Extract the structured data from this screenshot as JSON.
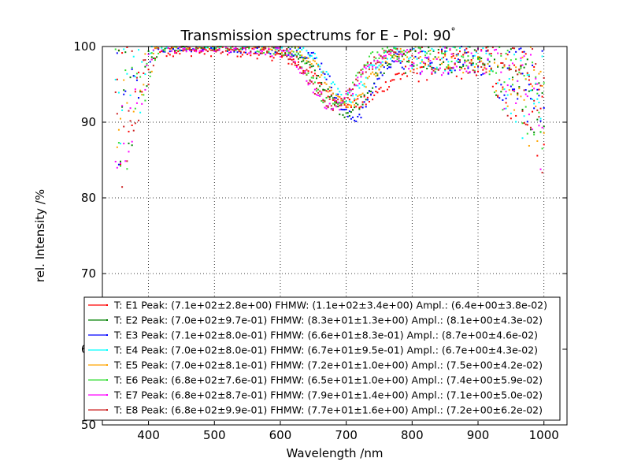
{
  "chart_data": {
    "type": "scatter",
    "title": "Transmission spectrums for E - Pol: 90",
    "title_degree": "°",
    "xlabel": "Wavelength  /nm",
    "ylabel": "rel. Intensity  /%",
    "xlim": [
      330,
      1035
    ],
    "ylim": [
      50,
      100
    ],
    "xticks": [
      400,
      500,
      600,
      700,
      800,
      900,
      1000
    ],
    "yticks": [
      50,
      60,
      70,
      80,
      90,
      100
    ],
    "grid": true,
    "legend_position": "lower-center",
    "series": [
      {
        "name": "T: E1 Peak: (7.1e+02±2.8e+00)  FHMW: (1.1e+02±3.4e+00)  Ampl.: (6.4e+00±3.8e-02)",
        "color": "#ff0000",
        "center": 710,
        "width": 110,
        "dip": 6.4,
        "base": 99.5
      },
      {
        "name": "T: E2 Peak: (7.0e+02±9.7e-01)  FHMW: (8.3e+01±1.3e+00)  Ampl.: (8.1e+00±4.3e-02)",
        "color": "#008000",
        "center": 700,
        "width": 83,
        "dip": 8.1,
        "base": 100.3
      },
      {
        "name": "T: E3 Peak: (7.1e+02±8.0e-01)  FHMW: (6.6e+01±8.3e-01)  Ampl.: (8.7e+00±4.6e-02)",
        "color": "#0000ff",
        "center": 710,
        "width": 66,
        "dip": 8.7,
        "base": 100.1
      },
      {
        "name": "T: E4 Peak: (7.0e+02±8.0e-01)  FHMW: (6.7e+01±9.5e-01)  Ampl.: (6.7e+00±4.3e-02)",
        "color": "#00ffff",
        "center": 700,
        "width": 67,
        "dip": 6.7,
        "base": 100.6
      },
      {
        "name": "T: E5 Peak: (7.0e+02±8.1e-01)  FHMW: (7.2e+01±1.0e+00)  Ampl.: (7.5e+00±4.2e-02)",
        "color": "#ffa500",
        "center": 700,
        "width": 72,
        "dip": 7.5,
        "base": 100.4
      },
      {
        "name": "T: E6 Peak: (6.8e+02±7.6e-01)  FHMW: (6.5e+01±1.0e+00)  Ampl.: (7.4e+00±5.9e-02)",
        "color": "#33dd33",
        "center": 680,
        "width": 65,
        "dip": 7.4,
        "base": 100.2
      },
      {
        "name": "T: E7 Peak: (6.8e+02±8.7e-01)  FHMW: (7.9e+01±1.4e+00)  Ampl.: (7.1e+00±5.0e-02)",
        "color": "#ff00ff",
        "center": 680,
        "width": 79,
        "dip": 7.1,
        "base": 100.0
      },
      {
        "name": "T: E8 Peak: (6.8e+02±9.9e-01)  FHMW: (7.7e+01±1.6e+00)  Ampl.: (7.2e+00±6.2e-02)",
        "color": "#cc2222",
        "center": 680,
        "width": 77,
        "dip": 7.2,
        "base": 100.1
      }
    ]
  }
}
